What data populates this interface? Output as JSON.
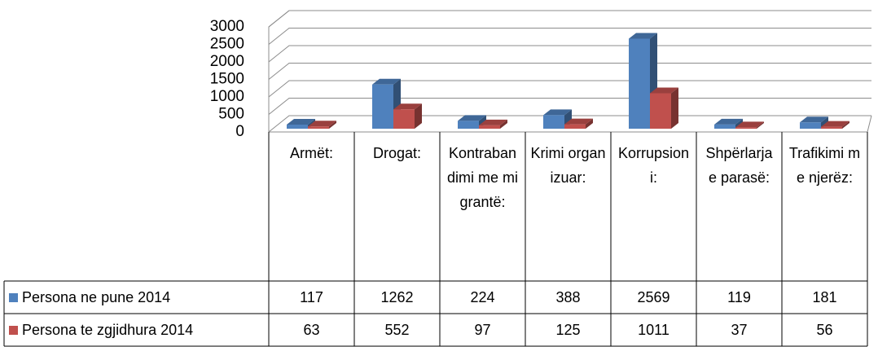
{
  "chart_data": {
    "type": "bar3d",
    "categories": [
      "Armët:",
      "Drogat:",
      "Kontrabandimi me migrantë:",
      "Krimi organizuar:",
      "Korrupsioni:",
      "Shpërlarja e parasë:",
      "Trafikimi me njerëz:"
    ],
    "series": [
      {
        "name": "Persona ne pune 2014",
        "color": "#4f81bd",
        "values": [
          117,
          1262,
          224,
          388,
          2569,
          119,
          181
        ]
      },
      {
        "name": "Persona te zgjidhura 2014",
        "color": "#c0504d",
        "values": [
          63,
          552,
          97,
          125,
          1011,
          37,
          56
        ]
      }
    ],
    "ylim": [
      0,
      3000
    ],
    "yticks": [
      0,
      500,
      1000,
      1500,
      2000,
      2500,
      3000
    ],
    "grid": true
  }
}
